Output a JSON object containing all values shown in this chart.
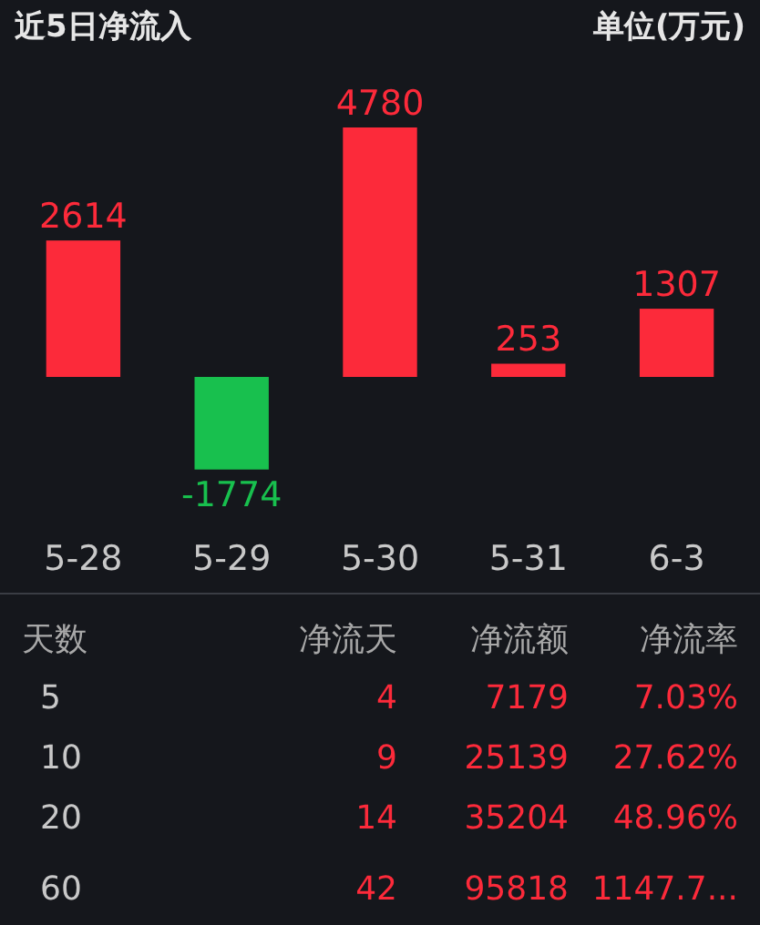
{
  "chart_data": [
    {
      "type": "bar",
      "title": "近5日净流入",
      "subtitle": "单位(万元)",
      "categories": [
        "5-28",
        "5-29",
        "5-30",
        "5-31",
        "6-3"
      ],
      "values": [
        2614,
        -1774,
        4780,
        253,
        1307
      ],
      "colors": [
        "#fc2a3a",
        "#18c04e",
        "#fc2a3a",
        "#fc2a3a",
        "#fc2a3a"
      ],
      "data_labels": true
    },
    {
      "type": "other",
      "categories": [
        "天数",
        "净流天",
        "净流额",
        "净流率"
      ],
      "cell_labels": [
        [
          "5",
          "4",
          "7179",
          "7.03%"
        ],
        [
          "10",
          "9",
          "25139",
          "27.62%"
        ],
        [
          "20",
          "14",
          "35204",
          "48.96%"
        ],
        [
          "60",
          "42",
          "95818",
          "1147.7..."
        ]
      ]
    }
  ]
}
